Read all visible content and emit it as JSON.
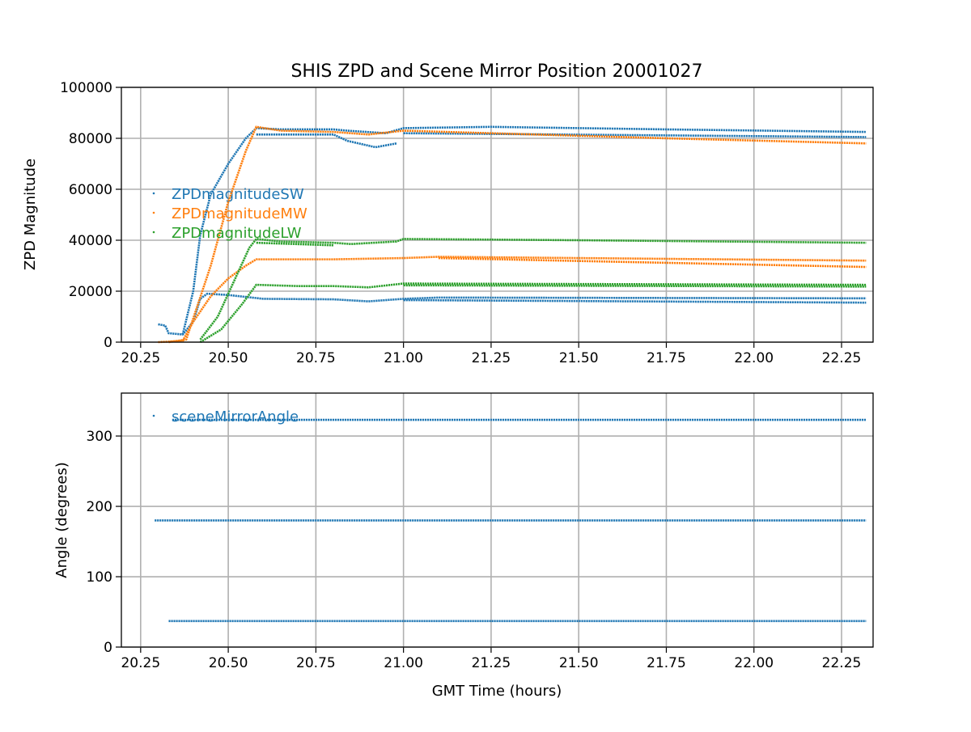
{
  "chart_data": [
    {
      "type": "scatter",
      "title": "SHIS ZPD and Scene Mirror Position 20001027",
      "xlabel": "",
      "ylabel": "ZPD Magnitude",
      "xlim": [
        20.195,
        22.34
      ],
      "ylim": [
        0,
        100000
      ],
      "xticks": [
        "20.25",
        "20.50",
        "20.75",
        "21.00",
        "21.25",
        "21.50",
        "21.75",
        "22.00",
        "22.25"
      ],
      "yticks": [
        "0",
        "20000",
        "40000",
        "60000",
        "80000",
        "100000"
      ],
      "grid": true,
      "legend_position": "center-left",
      "series": [
        {
          "name": "ZPDmagnitudeSW",
          "color": "#1f77b4",
          "traces": [
            [
              [
                20.37,
                3000
              ],
              [
                20.4,
                20000
              ],
              [
                20.42,
                42000
              ],
              [
                20.45,
                58000
              ],
              [
                20.5,
                70000
              ],
              [
                20.55,
                80000
              ],
              [
                20.58,
                84000
              ],
              [
                20.65,
                83500
              ],
              [
                20.8,
                83500
              ],
              [
                20.84,
                83000
              ],
              [
                20.95,
                82000
              ],
              [
                21.0,
                84000
              ],
              [
                21.25,
                84500
              ],
              [
                21.75,
                83500
              ],
              [
                22.32,
                82500
              ]
            ],
            [
              [
                20.58,
                81500
              ],
              [
                20.8,
                81500
              ],
              [
                20.84,
                79000
              ],
              [
                20.92,
                76500
              ],
              [
                20.98,
                78000
              ]
            ],
            [
              [
                21.0,
                82000
              ],
              [
                22.32,
                80500
              ]
            ],
            [
              [
                20.3,
                7000
              ],
              [
                20.32,
                6500
              ],
              [
                20.33,
                3500
              ],
              [
                20.37,
                3000
              ],
              [
                20.4,
                8000
              ],
              [
                20.42,
                17000
              ],
              [
                20.44,
                19000
              ],
              [
                20.5,
                18500
              ],
              [
                20.6,
                17000
              ],
              [
                20.8,
                16800
              ],
              [
                20.9,
                16000
              ],
              [
                21.0,
                17000
              ],
              [
                21.1,
                17500
              ],
              [
                22.32,
                17200
              ]
            ],
            [
              [
                21.0,
                16500
              ],
              [
                22.32,
                15500
              ]
            ]
          ]
        },
        {
          "name": "ZPDmagnitudeMW",
          "color": "#ff7f0e",
          "traces": [
            [
              [
                20.33,
                0
              ],
              [
                20.38,
                1000
              ],
              [
                20.45,
                30000
              ],
              [
                20.5,
                55000
              ],
              [
                20.55,
                75000
              ],
              [
                20.58,
                84500
              ],
              [
                20.65,
                83000
              ],
              [
                20.8,
                82500
              ],
              [
                20.9,
                81500
              ],
              [
                21.0,
                83000
              ],
              [
                21.25,
                82000
              ],
              [
                21.75,
                80000
              ],
              [
                22.32,
                78000
              ]
            ],
            [
              [
                20.3,
                0
              ],
              [
                20.37,
                500
              ],
              [
                20.4,
                8000
              ],
              [
                20.45,
                18000
              ],
              [
                20.5,
                25000
              ],
              [
                20.55,
                30000
              ],
              [
                20.58,
                32500
              ],
              [
                20.8,
                32500
              ],
              [
                21.0,
                33000
              ],
              [
                21.1,
                33500
              ],
              [
                21.5,
                33000
              ],
              [
                22.32,
                32000
              ]
            ],
            [
              [
                21.1,
                33000
              ],
              [
                22.32,
                29500
              ]
            ]
          ]
        },
        {
          "name": "ZPDmagnitudeLW",
          "color": "#2ca02c",
          "traces": [
            [
              [
                20.42,
                1000
              ],
              [
                20.47,
                10000
              ],
              [
                20.52,
                25000
              ],
              [
                20.56,
                37000
              ],
              [
                20.58,
                40500
              ],
              [
                20.65,
                39500
              ],
              [
                20.8,
                39000
              ],
              [
                20.85,
                38500
              ],
              [
                20.98,
                39500
              ],
              [
                21.0,
                40500
              ],
              [
                21.5,
                40000
              ],
              [
                22.32,
                39000
              ]
            ],
            [
              [
                20.58,
                39000
              ],
              [
                20.8,
                38000
              ]
            ],
            [
              [
                20.42,
                0
              ],
              [
                20.48,
                5000
              ],
              [
                20.54,
                15000
              ],
              [
                20.58,
                22500
              ],
              [
                20.7,
                22000
              ],
              [
                20.8,
                22000
              ],
              [
                20.9,
                21500
              ],
              [
                21.0,
                23000
              ],
              [
                22.32,
                22500
              ]
            ],
            [
              [
                21.0,
                22300
              ],
              [
                22.32,
                21800
              ]
            ]
          ]
        }
      ]
    },
    {
      "type": "scatter",
      "title": "",
      "xlabel": "GMT Time (hours)",
      "ylabel": "Angle (degrees)",
      "xlim": [
        20.195,
        22.34
      ],
      "ylim": [
        0,
        361
      ],
      "xticks": [
        "20.25",
        "20.50",
        "20.75",
        "21.00",
        "21.25",
        "21.50",
        "21.75",
        "22.00",
        "22.25"
      ],
      "yticks": [
        "0",
        "100",
        "200",
        "300"
      ],
      "grid": true,
      "legend_position": "upper-left",
      "series": [
        {
          "name": "sceneMirrorAngle",
          "color": "#1f77b4",
          "traces": [
            [
              [
                20.34,
                323
              ],
              [
                22.32,
                323
              ]
            ],
            [
              [
                20.29,
                180
              ],
              [
                22.32,
                180
              ]
            ],
            [
              [
                20.33,
                37
              ],
              [
                22.32,
                37
              ]
            ]
          ]
        }
      ]
    }
  ]
}
